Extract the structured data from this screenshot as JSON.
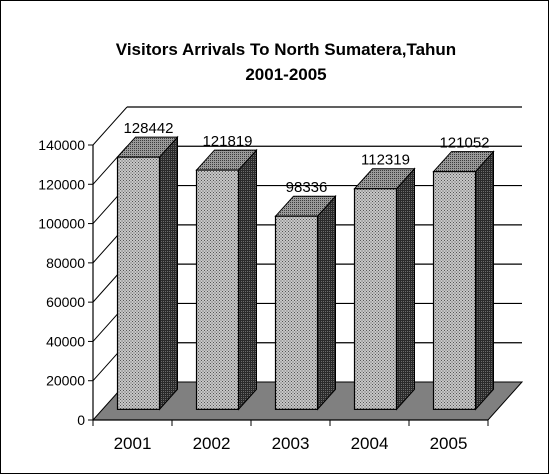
{
  "chart_data": {
    "type": "bar",
    "title_line1": "Visitors Arrivals To North Sumatera,Tahun",
    "title_line2": "2001-2005",
    "xlabel": "",
    "ylabel": "",
    "categories": [
      "2001",
      "2002",
      "2003",
      "2004",
      "2005"
    ],
    "values": [
      128442,
      121819,
      98336,
      112319,
      121052
    ],
    "data_labels": [
      "128442",
      "121819",
      "98336",
      "112319",
      "121052"
    ],
    "ylim": [
      0,
      140000
    ],
    "yticks": [
      "0",
      "20000",
      "40000",
      "60000",
      "80000",
      "100000",
      "120000",
      "140000"
    ],
    "grid": true,
    "legend": "none",
    "style": "3d",
    "colors": {
      "bar_front": "#b4b4b4",
      "bar_side": "#3a3a3a",
      "bar_top": "#8c8c8c",
      "floor": "#808080",
      "grid": "#000000"
    }
  }
}
